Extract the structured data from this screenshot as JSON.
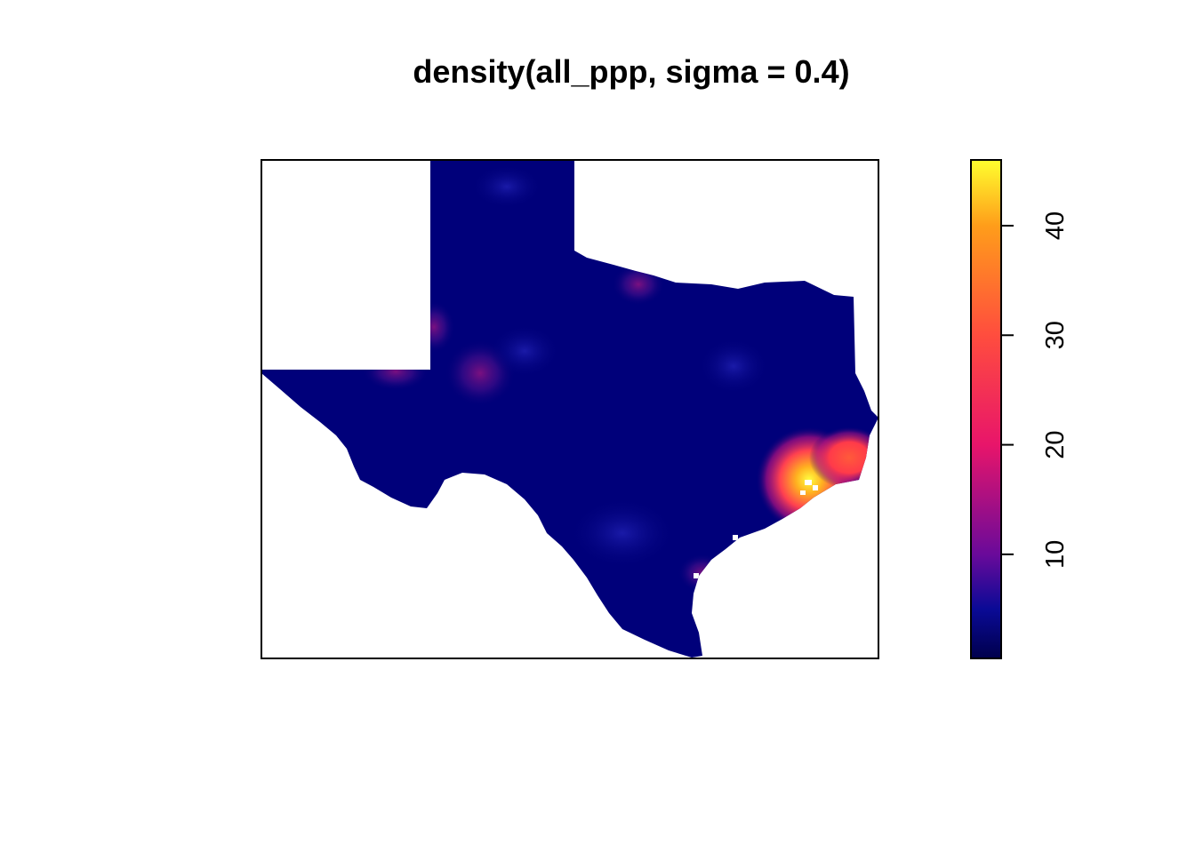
{
  "plot": {
    "title": "density(all_ppp, sigma = 0.4)"
  },
  "colorbar": {
    "range": [
      0.5,
      46
    ],
    "ticks": [
      {
        "value": 10,
        "label": "10"
      },
      {
        "value": 20,
        "label": "20"
      },
      {
        "value": 30,
        "label": "30"
      },
      {
        "value": 40,
        "label": "40"
      }
    ],
    "stops": [
      {
        "value": 0.5,
        "color": "#00004c"
      },
      {
        "value": 5,
        "color": "#0a0a96"
      },
      {
        "value": 10,
        "color": "#6a0a9a"
      },
      {
        "value": 20,
        "color": "#e8156a"
      },
      {
        "value": 30,
        "color": "#ff4d3e"
      },
      {
        "value": 40,
        "color": "#ff9d1a"
      },
      {
        "value": 46,
        "color": "#ffff2e"
      }
    ]
  },
  "map_colors": {
    "background_density": "#000070",
    "region_fill": "#00007a"
  },
  "hotspots": [
    {
      "name": "houston-hotspot",
      "density": 46
    },
    {
      "name": "beaumont-hotspot",
      "density": 28
    },
    {
      "name": "corpus-christi-hotspot",
      "density": 12
    },
    {
      "name": "west-hotspot-1",
      "density": 13
    },
    {
      "name": "west-hotspot-2",
      "density": 12
    },
    {
      "name": "panhandle-hotspot",
      "density": 11
    },
    {
      "name": "north-hotspot",
      "density": 10
    }
  ]
}
